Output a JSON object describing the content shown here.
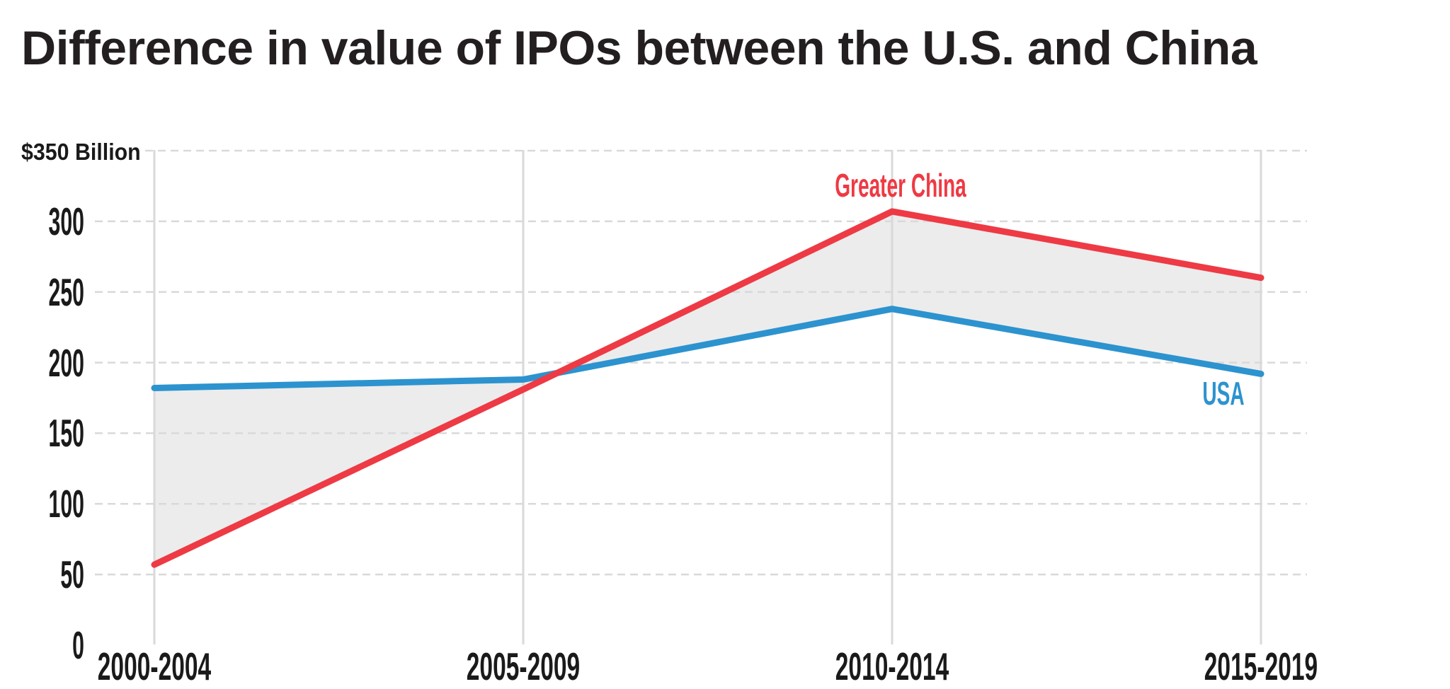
{
  "title": "Difference in value of IPOs between the U.S. and China",
  "chart_data": {
    "type": "line",
    "title": "Difference in value of IPOs between the U.S. and China",
    "unit": "$ Billion",
    "categories": [
      "2000-2004",
      "2005-2009",
      "2010-2014",
      "2015-2019"
    ],
    "series": [
      {
        "name": "Greater China",
        "color": "#ee3a44",
        "values": [
          57,
          181,
          307,
          260
        ]
      },
      {
        "name": "USA",
        "color": "#2c93cf",
        "values": [
          182,
          188,
          238,
          192
        ]
      }
    ],
    "y_axis": {
      "top_label": "$350 Billion",
      "ticks": [
        0,
        50,
        100,
        150,
        200,
        250,
        300
      ],
      "max_tick": 350,
      "range": [
        0,
        350
      ],
      "gridline_style": "dashed"
    },
    "x_axis": {
      "gridline_style": "solid vertical line at each category"
    },
    "fill_between": {
      "between": [
        "Greater China",
        "USA"
      ],
      "color": "#ececec"
    },
    "legend_position": "inline labels near line ends"
  },
  "colors": {
    "background": "#ffffff",
    "grid": "#d9d9d9",
    "tick_text": "#1a1a1a",
    "title_text": "#231f20",
    "china_red": "#ee3a44",
    "usa_blue": "#2c93cf",
    "area_fill": "#ececec"
  }
}
